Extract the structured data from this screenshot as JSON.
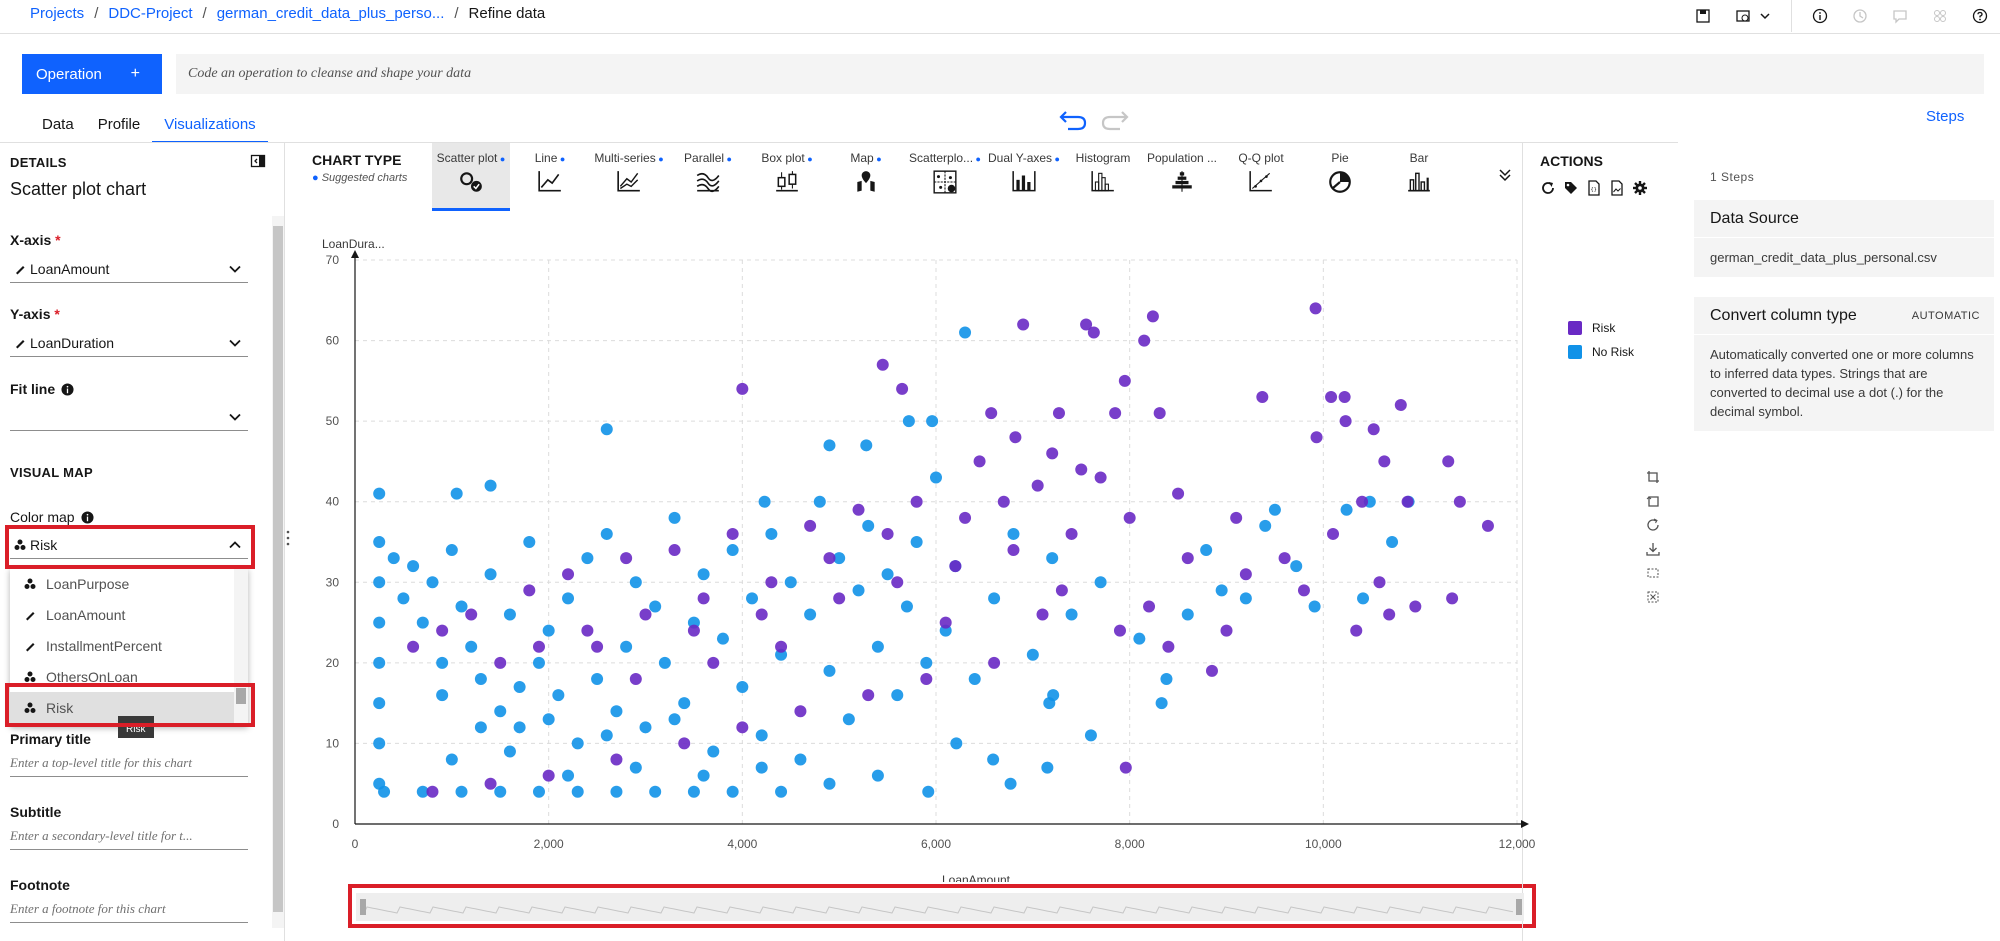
{
  "breadcrumbs": [
    {
      "label": "Projects",
      "link": true
    },
    {
      "label": "DDC-Project",
      "link": true
    },
    {
      "label": "german_credit_data_plus_perso...",
      "link": true
    },
    {
      "label": "Refine data",
      "link": false
    }
  ],
  "operation": {
    "label": "Operation",
    "plus": "+",
    "placeholder": "Code an operation to cleanse and shape your data"
  },
  "tabs": [
    {
      "label": "Data"
    },
    {
      "label": "Profile"
    },
    {
      "label": "Visualizations",
      "active": true
    }
  ],
  "steps_link": "Steps",
  "details": {
    "heading": "DETAILS",
    "title": "Scatter plot chart",
    "x_axis": {
      "label": "X-axis",
      "required": "*",
      "value": "LoanAmount"
    },
    "y_axis": {
      "label": "Y-axis",
      "required": "*",
      "value": "LoanDuration"
    },
    "fit_line": {
      "label": "Fit line",
      "value": ""
    },
    "visual_map": "VISUAL MAP",
    "color_map": {
      "label": "Color map",
      "value": "Risk"
    },
    "dropdown_options": [
      {
        "label": "LoanPurpose",
        "icon": "categorical-icon"
      },
      {
        "label": "LoanAmount",
        "icon": "numeric-icon"
      },
      {
        "label": "InstallmentPercent",
        "icon": "numeric-icon"
      },
      {
        "label": "OthersOnLoan",
        "icon": "categorical-icon"
      },
      {
        "label": "Risk",
        "icon": "categorical-icon",
        "selected": true
      }
    ],
    "tooltip": "Risk",
    "primary_title": {
      "label": "Primary title",
      "placeholder": "Enter a top-level title for this chart"
    },
    "subtitle": {
      "label": "Subtitle",
      "placeholder": "Enter a secondary-level title for t..."
    },
    "footnote": {
      "label": "Footnote",
      "placeholder": "Enter a footnote for this chart"
    }
  },
  "chart_type": {
    "title": "CHART TYPE",
    "subtitle": "Suggested charts",
    "items": [
      {
        "label": "Scatter plot",
        "suggested": true,
        "active": true,
        "icon": "scatter-plot-icon"
      },
      {
        "label": "Line",
        "suggested": true,
        "icon": "line-chart-icon"
      },
      {
        "label": "Multi-series",
        "suggested": true,
        "icon": "multi-series-icon"
      },
      {
        "label": "Parallel",
        "suggested": true,
        "icon": "parallel-icon"
      },
      {
        "label": "Box plot",
        "suggested": true,
        "icon": "box-plot-icon"
      },
      {
        "label": "Map",
        "suggested": true,
        "icon": "map-icon"
      },
      {
        "label": "Scatterplo...",
        "suggested": true,
        "icon": "scatterplot-matrix-icon"
      },
      {
        "label": "Dual Y-axes",
        "suggested": true,
        "icon": "dual-y-axes-icon"
      },
      {
        "label": "Histogram",
        "suggested": false,
        "icon": "histogram-icon"
      },
      {
        "label": "Population ...",
        "suggested": false,
        "icon": "population-pyramid-icon"
      },
      {
        "label": "Q-Q plot",
        "suggested": false,
        "icon": "qq-plot-icon"
      },
      {
        "label": "Pie",
        "suggested": false,
        "icon": "pie-chart-icon"
      },
      {
        "label": "Bar",
        "suggested": false,
        "icon": "bar-chart-icon"
      }
    ]
  },
  "actions": {
    "title": "ACTIONS"
  },
  "colors": {
    "accent": "#0f62fe",
    "risk": "#6929c4",
    "no_risk": "#1192e8",
    "highlight": "#da1e28"
  },
  "chart_data": {
    "type": "scatter",
    "title": "",
    "xlabel": "LoanAmount",
    "ylabel": "LoanDura...",
    "xlim": [
      0,
      12000
    ],
    "ylim": [
      0,
      70
    ],
    "x_ticks": [
      "0",
      "2,000",
      "4,000",
      "6,000",
      "8,000",
      "10,000",
      "12,000"
    ],
    "y_ticks": [
      "0",
      "10",
      "20",
      "30",
      "40",
      "50",
      "60",
      "70"
    ],
    "grid": true,
    "legend_position": "right",
    "series": [
      {
        "name": "Risk",
        "color": "#6929c4",
        "points": [
          [
            9920,
            64
          ],
          [
            8240,
            63
          ],
          [
            7550,
            62
          ],
          [
            6900,
            62
          ],
          [
            7630,
            61
          ],
          [
            8150,
            60
          ],
          [
            5450,
            57
          ],
          [
            4000,
            54
          ],
          [
            5650,
            54
          ],
          [
            7950,
            55
          ],
          [
            10080,
            53
          ],
          [
            10220,
            53
          ],
          [
            10800,
            52
          ],
          [
            9370,
            53
          ],
          [
            6570,
            51
          ],
          [
            7270,
            51
          ],
          [
            7850,
            51
          ],
          [
            8310,
            51
          ],
          [
            10230,
            50
          ],
          [
            10520,
            49
          ],
          [
            9930,
            48
          ],
          [
            10630,
            45
          ],
          [
            11290,
            45
          ],
          [
            11410,
            40
          ],
          [
            10870,
            40
          ],
          [
            11700,
            37
          ],
          [
            11330,
            28
          ],
          [
            10950,
            27
          ],
          [
            10680,
            26
          ],
          [
            10340,
            24
          ],
          [
            10580,
            30
          ],
          [
            7960,
            7
          ],
          [
            8850,
            19
          ],
          [
            6820,
            48
          ],
          [
            7200,
            46
          ],
          [
            6450,
            45
          ],
          [
            7050,
            42
          ],
          [
            7700,
            43
          ],
          [
            8500,
            41
          ],
          [
            9100,
            38
          ],
          [
            6300,
            38
          ],
          [
            5800,
            40
          ],
          [
            5200,
            39
          ],
          [
            4700,
            37
          ],
          [
            3900,
            36
          ],
          [
            3300,
            34
          ],
          [
            2800,
            33
          ],
          [
            2200,
            31
          ],
          [
            1800,
            29
          ],
          [
            1200,
            26
          ],
          [
            900,
            24
          ],
          [
            600,
            22
          ],
          [
            1500,
            20
          ],
          [
            2500,
            22
          ],
          [
            3500,
            24
          ],
          [
            4200,
            26
          ],
          [
            5000,
            28
          ],
          [
            5600,
            30
          ],
          [
            6200,
            32
          ],
          [
            6800,
            34
          ],
          [
            7400,
            36
          ],
          [
            8000,
            38
          ],
          [
            8600,
            33
          ],
          [
            9200,
            31
          ],
          [
            9800,
            29
          ],
          [
            7100,
            26
          ],
          [
            7900,
            24
          ],
          [
            8400,
            22
          ],
          [
            6600,
            20
          ],
          [
            5900,
            18
          ],
          [
            5300,
            16
          ],
          [
            4600,
            14
          ],
          [
            4000,
            12
          ],
          [
            3400,
            10
          ],
          [
            2700,
            8
          ],
          [
            2000,
            6
          ],
          [
            1400,
            5
          ],
          [
            800,
            4
          ],
          [
            2900,
            18
          ],
          [
            3700,
            20
          ],
          [
            4400,
            22
          ],
          [
            6100,
            25
          ],
          [
            7300,
            29
          ],
          [
            8200,
            27
          ],
          [
            9000,
            24
          ],
          [
            9600,
            33
          ],
          [
            10100,
            36
          ],
          [
            10400,
            40
          ],
          [
            7500,
            44
          ],
          [
            6700,
            40
          ],
          [
            5500,
            36
          ],
          [
            4900,
            33
          ],
          [
            4300,
            30
          ],
          [
            3600,
            28
          ],
          [
            3000,
            26
          ],
          [
            2400,
            24
          ],
          [
            1900,
            22
          ]
        ]
      },
      {
        "name": "No Risk",
        "color": "#1192e8",
        "points": [
          [
            250,
            41
          ],
          [
            6300,
            61
          ],
          [
            1050,
            41
          ],
          [
            1400,
            42
          ],
          [
            2600,
            49
          ],
          [
            4900,
            47
          ],
          [
            5720,
            50
          ],
          [
            5960,
            50
          ],
          [
            5280,
            47
          ],
          [
            4230,
            40
          ],
          [
            10880,
            40
          ],
          [
            10480,
            40
          ],
          [
            10240,
            39
          ],
          [
            10710,
            35
          ],
          [
            9500,
            39
          ],
          [
            9400,
            37
          ],
          [
            8380,
            18
          ],
          [
            8330,
            15
          ],
          [
            7170,
            15
          ],
          [
            7210,
            16
          ],
          [
            6210,
            10
          ],
          [
            6590,
            8
          ],
          [
            6770,
            5
          ],
          [
            5920,
            4
          ],
          [
            7600,
            11
          ],
          [
            7150,
            7
          ],
          [
            9720,
            32
          ],
          [
            9910,
            27
          ],
          [
            10410,
            28
          ],
          [
            8790,
            34
          ],
          [
            8950,
            29
          ],
          [
            250,
            35
          ],
          [
            250,
            30
          ],
          [
            250,
            25
          ],
          [
            250,
            20
          ],
          [
            250,
            15
          ],
          [
            250,
            10
          ],
          [
            250,
            5
          ],
          [
            400,
            33
          ],
          [
            500,
            28
          ],
          [
            600,
            32
          ],
          [
            700,
            25
          ],
          [
            800,
            30
          ],
          [
            900,
            20
          ],
          [
            1000,
            34
          ],
          [
            1100,
            27
          ],
          [
            1200,
            22
          ],
          [
            1300,
            18
          ],
          [
            1400,
            31
          ],
          [
            1500,
            14
          ],
          [
            1600,
            26
          ],
          [
            1700,
            12
          ],
          [
            1800,
            35
          ],
          [
            1900,
            20
          ],
          [
            2000,
            24
          ],
          [
            2100,
            16
          ],
          [
            2200,
            28
          ],
          [
            2300,
            10
          ],
          [
            2400,
            33
          ],
          [
            2500,
            18
          ],
          [
            2600,
            36
          ],
          [
            2700,
            14
          ],
          [
            2800,
            22
          ],
          [
            2900,
            30
          ],
          [
            3000,
            12
          ],
          [
            3100,
            27
          ],
          [
            3200,
            20
          ],
          [
            3300,
            38
          ],
          [
            3400,
            15
          ],
          [
            3500,
            25
          ],
          [
            3600,
            31
          ],
          [
            3700,
            9
          ],
          [
            3800,
            23
          ],
          [
            3900,
            34
          ],
          [
            4000,
            17
          ],
          [
            4100,
            28
          ],
          [
            4200,
            11
          ],
          [
            4300,
            36
          ],
          [
            4400,
            21
          ],
          [
            4500,
            30
          ],
          [
            4600,
            8
          ],
          [
            4700,
            26
          ],
          [
            4800,
            40
          ],
          [
            4900,
            19
          ],
          [
            5000,
            33
          ],
          [
            5100,
            13
          ],
          [
            5200,
            29
          ],
          [
            5300,
            37
          ],
          [
            5400,
            22
          ],
          [
            5500,
            31
          ],
          [
            5600,
            16
          ],
          [
            5700,
            27
          ],
          [
            5800,
            35
          ],
          [
            5900,
            20
          ],
          [
            6000,
            43
          ],
          [
            6100,
            24
          ],
          [
            6200,
            32
          ],
          [
            6400,
            18
          ],
          [
            6600,
            28
          ],
          [
            6800,
            36
          ],
          [
            7000,
            21
          ],
          [
            7200,
            33
          ],
          [
            7400,
            26
          ],
          [
            7700,
            30
          ],
          [
            8100,
            23
          ],
          [
            8600,
            26
          ],
          [
            9200,
            28
          ],
          [
            300,
            4
          ],
          [
            700,
            4
          ],
          [
            1100,
            4
          ],
          [
            1500,
            4
          ],
          [
            1900,
            4
          ],
          [
            2300,
            4
          ],
          [
            2700,
            4
          ],
          [
            3100,
            4
          ],
          [
            3500,
            4
          ],
          [
            3900,
            4
          ],
          [
            4400,
            4
          ],
          [
            4900,
            5
          ],
          [
            5400,
            6
          ],
          [
            1000,
            8
          ],
          [
            1600,
            9
          ],
          [
            2200,
            6
          ],
          [
            2900,
            7
          ],
          [
            3600,
            6
          ],
          [
            4200,
            7
          ],
          [
            1300,
            12
          ],
          [
            2000,
            13
          ],
          [
            2600,
            11
          ],
          [
            3300,
            13
          ],
          [
            900,
            16
          ],
          [
            1700,
            17
          ]
        ]
      }
    ]
  },
  "right_panel": {
    "steps_count": "1 Steps",
    "data_source_title": "Data Source",
    "data_source_file": "german_credit_data_plus_personal.csv",
    "convert_title": "Convert column type",
    "convert_badge": "AUTOMATIC",
    "convert_desc": "Automatically converted one or more columns to inferred data types. Strings that are converted to decimal use a dot (.) for the decimal symbol."
  }
}
